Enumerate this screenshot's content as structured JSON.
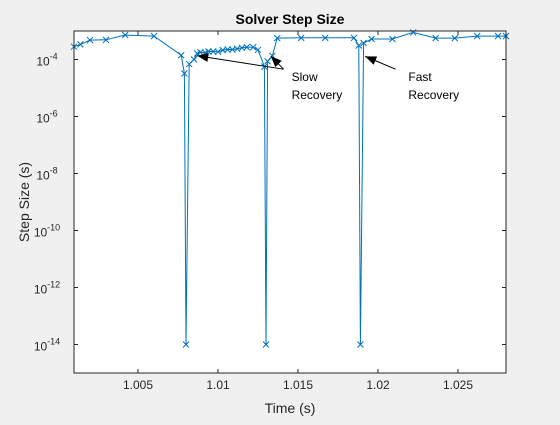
{
  "chart_data": {
    "type": "line",
    "title": "Solver Step Size",
    "xlabel": "Time (s)",
    "ylabel": "Step Size (s)",
    "xlim": [
      1.001,
      1.028
    ],
    "ylim_log10": [
      -15,
      -3
    ],
    "y_scale": "log",
    "grid": false,
    "x_ticks": [
      {
        "value": 1.005,
        "label": "1.005"
      },
      {
        "value": 1.01,
        "label": "1.01"
      },
      {
        "value": 1.015,
        "label": "1.015"
      },
      {
        "value": 1.02,
        "label": "1.02"
      },
      {
        "value": 1.025,
        "label": "1.025"
      }
    ],
    "y_ticks": [
      {
        "exp": -14,
        "base": "10",
        "sup": "-14"
      },
      {
        "exp": -12,
        "base": "10",
        "sup": "-12"
      },
      {
        "exp": -10,
        "base": "10",
        "sup": "-10"
      },
      {
        "exp": -8,
        "base": "10",
        "sup": "-8"
      },
      {
        "exp": -6,
        "base": "10",
        "sup": "-6"
      },
      {
        "exp": -4,
        "base": "10",
        "sup": "-4"
      }
    ],
    "series": [
      {
        "color": "#0072BD",
        "marker": "x",
        "x": [
          1.001,
          1.0014,
          1.002,
          1.003,
          1.0042,
          1.006,
          1.0077,
          1.0079,
          1.008,
          1.0082,
          1.0085,
          1.0087,
          1.0089,
          1.0092,
          1.0094,
          1.0097,
          1.01,
          1.0103,
          1.0106,
          1.0109,
          1.0112,
          1.0115,
          1.0118,
          1.0122,
          1.0125,
          1.0129,
          1.013,
          1.0131,
          1.0134,
          1.0137,
          1.0152,
          1.0167,
          1.0185,
          1.0188,
          1.0189,
          1.0191,
          1.0196,
          1.0209,
          1.0222,
          1.0236,
          1.0248,
          1.0262,
          1.0275,
          1.028
        ],
        "log10_y": [
          -3.55,
          -3.47,
          -3.32,
          -3.31,
          -3.14,
          -3.18,
          -3.85,
          -4.49,
          -14.0,
          -4.16,
          -4.0,
          -3.79,
          -3.75,
          -3.76,
          -3.72,
          -3.72,
          -3.73,
          -3.67,
          -3.65,
          -3.65,
          -3.62,
          -3.59,
          -3.57,
          -3.57,
          -3.66,
          -4.25,
          -14.0,
          -4.06,
          -3.87,
          -3.25,
          -3.24,
          -3.24,
          -3.24,
          -3.51,
          -14.0,
          -3.42,
          -3.28,
          -3.28,
          -3.05,
          -3.25,
          -3.25,
          -3.18,
          -3.18,
          -3.18
        ]
      }
    ],
    "annotations": [
      {
        "lines": [
          "Slow",
          "Recovery"
        ],
        "tx": 1.0146,
        "tlog10y": -4.75,
        "arrows": [
          {
            "from_x": 1.0141,
            "from_log10y": -4.34,
            "to_x": 1.0087,
            "to_log10y": -3.87
          },
          {
            "from_x": 1.0141,
            "from_log10y": -4.34,
            "to_x": 1.0133,
            "to_log10y": -3.88
          }
        ]
      },
      {
        "lines": [
          "Fast",
          "Recovery"
        ],
        "tx": 1.0219,
        "tlog10y": -4.75,
        "arrows": [
          {
            "from_x": 1.0211,
            "from_log10y": -4.34,
            "to_x": 1.0192,
            "to_log10y": -3.89
          }
        ]
      }
    ]
  }
}
